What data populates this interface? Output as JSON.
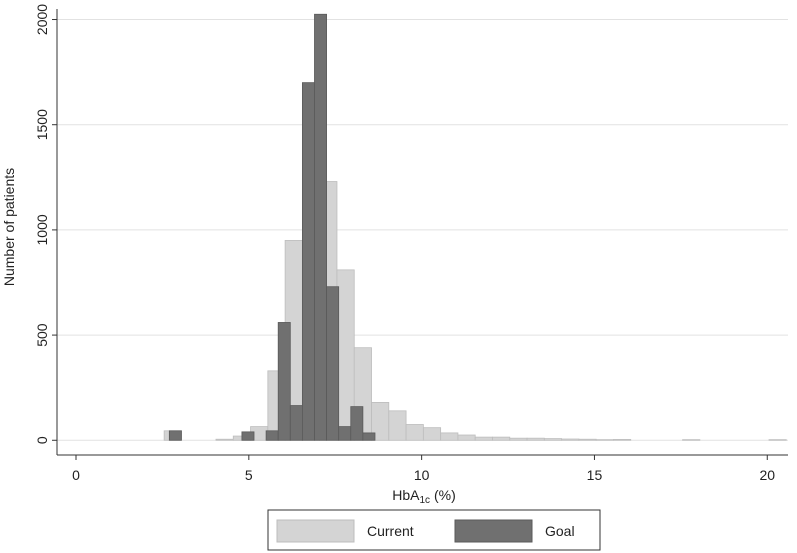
{
  "chart_data": {
    "type": "histogram",
    "ylabel": "Number of patients",
    "xlabel": {
      "text": "HbA",
      "subscript": "1c",
      "suffix": " (%)"
    },
    "xlim": [
      -0.55,
      20.6
    ],
    "ylim": [
      -70,
      2050
    ],
    "xticks": [
      0,
      5,
      10,
      15,
      20
    ],
    "yticks": [
      0,
      500,
      1000,
      1500,
      2000
    ],
    "grid": true,
    "legend": "bottom",
    "series": [
      {
        "name": "Current",
        "color": "#d4d4d4",
        "bins": [
          2.55,
          3.05,
          3.55,
          4.05,
          4.55,
          5.05,
          5.55,
          6.05,
          6.55,
          7.05,
          7.55,
          8.05,
          8.55,
          9.05,
          9.55,
          10.05,
          10.55,
          11.05,
          11.55,
          12.05,
          12.55,
          13.05,
          13.55,
          14.05,
          14.55,
          15.05,
          15.55,
          16.05,
          16.55,
          17.05,
          17.55,
          18.05,
          18.55,
          19.05,
          19.55,
          20.05,
          20.55
        ],
        "values": [
          45,
          0,
          0,
          5,
          20,
          65,
          330,
          950,
          960,
          1230,
          810,
          440,
          180,
          140,
          75,
          60,
          35,
          25,
          15,
          15,
          10,
          10,
          8,
          6,
          5,
          3,
          4,
          0,
          0,
          0,
          3,
          0,
          0,
          0,
          0,
          3
        ]
      },
      {
        "name": "Goal",
        "color": "#707070",
        "bins": [
          2.7,
          3.05,
          3.4,
          3.75,
          4.1,
          4.45,
          4.8,
          5.15,
          5.5,
          5.85,
          6.2,
          6.55,
          6.9,
          7.25,
          7.6,
          7.95,
          8.3,
          8.65
        ],
        "values": [
          45,
          0,
          0,
          0,
          0,
          0,
          40,
          0,
          45,
          560,
          165,
          1700,
          2025,
          730,
          65,
          160,
          35
        ]
      }
    ]
  }
}
